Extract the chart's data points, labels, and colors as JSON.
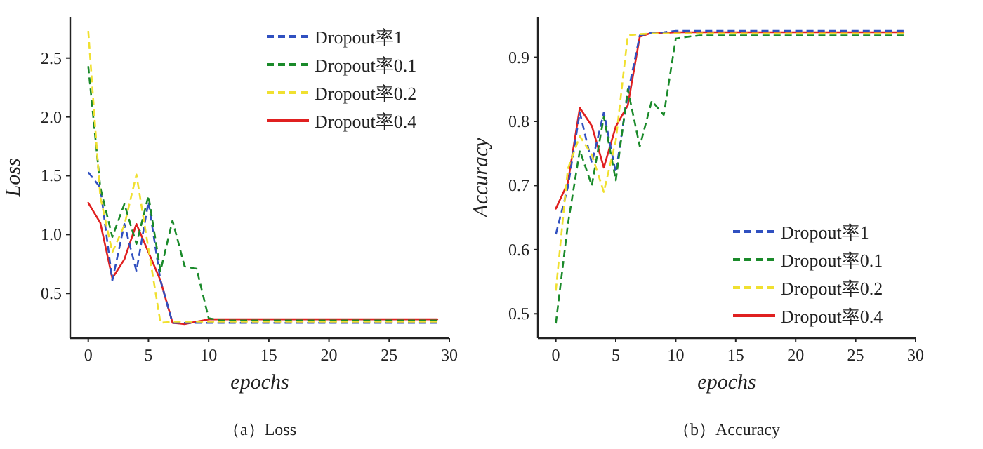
{
  "chart_data": [
    {
      "type": "line",
      "title": "（a）Loss",
      "xlabel": "epochs",
      "ylabel": "Loss",
      "x": [
        0,
        1,
        2,
        3,
        4,
        5,
        6,
        7,
        8,
        9,
        10,
        11,
        12,
        13,
        14,
        15,
        16,
        17,
        18,
        19,
        20,
        21,
        22,
        23,
        24,
        25,
        26,
        27,
        28,
        29
      ],
      "xlim": [
        -1.5,
        30
      ],
      "xticks": [
        0,
        5,
        10,
        15,
        20,
        25,
        30
      ],
      "ylim": [
        0.12,
        2.85
      ],
      "yticks": [
        0.5,
        {
          "value": 1,
          "label": "1.0"
        },
        1.5,
        {
          "value": 2,
          "label": "2.0"
        },
        2.5
      ],
      "legend": "top right",
      "grid": false,
      "series": [
        {
          "name": "Dropout率1",
          "color": "#3050c0",
          "line_style": "dashed",
          "values": [
            1.53,
            1.4,
            0.61,
            1.09,
            0.69,
            1.28,
            0.61,
            0.25,
            0.25,
            0.25,
            0.25,
            0.25,
            0.25,
            0.25,
            0.25,
            0.25,
            0.25,
            0.25,
            0.25,
            0.25,
            0.25,
            0.25,
            0.25,
            0.25,
            0.25,
            0.25,
            0.25,
            0.25,
            0.25,
            0.25
          ]
        },
        {
          "name": "Dropout率0.1",
          "color": "#1a8a2a",
          "line_style": "dashed",
          "values": [
            2.43,
            1.4,
            0.98,
            1.26,
            0.92,
            1.33,
            0.69,
            1.12,
            0.73,
            0.71,
            0.29,
            0.27,
            0.27,
            0.27,
            0.27,
            0.27,
            0.27,
            0.27,
            0.27,
            0.27,
            0.27,
            0.27,
            0.27,
            0.27,
            0.27,
            0.27,
            0.27,
            0.27,
            0.27,
            0.27
          ]
        },
        {
          "name": "Dropout率0.2",
          "color": "#f0e030",
          "line_style": "dashed",
          "values": [
            2.73,
            1.32,
            0.85,
            1.08,
            1.51,
            0.88,
            0.25,
            0.26,
            0.26,
            0.26,
            0.26,
            0.26,
            0.26,
            0.26,
            0.26,
            0.26,
            0.26,
            0.26,
            0.26,
            0.26,
            0.26,
            0.26,
            0.26,
            0.26,
            0.26,
            0.26,
            0.26,
            0.26,
            0.26,
            0.26
          ]
        },
        {
          "name": "Dropout率0.4",
          "color": "#e02020",
          "line_style": "solid",
          "values": [
            1.27,
            1.1,
            0.63,
            0.79,
            1.09,
            0.85,
            0.61,
            0.25,
            0.24,
            0.26,
            0.28,
            0.28,
            0.28,
            0.28,
            0.28,
            0.28,
            0.28,
            0.28,
            0.28,
            0.28,
            0.28,
            0.28,
            0.28,
            0.28,
            0.28,
            0.28,
            0.28,
            0.28,
            0.28,
            0.28
          ]
        }
      ]
    },
    {
      "type": "line",
      "title": "（b）Accuracy",
      "xlabel": "epochs",
      "ylabel": "Accuracy",
      "x": [
        0,
        1,
        2,
        3,
        4,
        5,
        6,
        7,
        8,
        9,
        10,
        11,
        12,
        13,
        14,
        15,
        16,
        17,
        18,
        19,
        20,
        21,
        22,
        23,
        24,
        25,
        26,
        27,
        28,
        29
      ],
      "xlim": [
        -1.5,
        30
      ],
      "xticks": [
        0,
        5,
        10,
        15,
        20,
        25,
        30
      ],
      "ylim": [
        0.462,
        0.963
      ],
      "yticks": [
        0.5,
        0.6,
        0.7,
        0.8,
        0.9
      ],
      "legend": "bottom right",
      "grid": false,
      "series": [
        {
          "name": "Dropout率1",
          "color": "#3050c0",
          "line_style": "dashed",
          "values": [
            0.624,
            0.697,
            0.814,
            0.735,
            0.814,
            0.72,
            0.843,
            0.934,
            0.938,
            0.939,
            0.941,
            0.941,
            0.941,
            0.941,
            0.941,
            0.941,
            0.941,
            0.941,
            0.941,
            0.941,
            0.941,
            0.941,
            0.941,
            0.941,
            0.941,
            0.941,
            0.941,
            0.941,
            0.941,
            0.941
          ]
        },
        {
          "name": "Dropout率0.1",
          "color": "#1a8a2a",
          "line_style": "dashed",
          "values": [
            0.485,
            0.639,
            0.755,
            0.7,
            0.807,
            0.708,
            0.85,
            0.761,
            0.832,
            0.81,
            0.929,
            0.932,
            0.934,
            0.934,
            0.934,
            0.934,
            0.934,
            0.934,
            0.934,
            0.934,
            0.934,
            0.934,
            0.934,
            0.934,
            0.934,
            0.934,
            0.934,
            0.934,
            0.934,
            0.934
          ]
        },
        {
          "name": "Dropout率0.2",
          "color": "#f0e030",
          "line_style": "dashed",
          "values": [
            0.536,
            0.726,
            0.777,
            0.748,
            0.69,
            0.77,
            0.934,
            0.936,
            0.937,
            0.937,
            0.937,
            0.937,
            0.937,
            0.937,
            0.937,
            0.937,
            0.937,
            0.937,
            0.937,
            0.937,
            0.937,
            0.937,
            0.937,
            0.937,
            0.937,
            0.937,
            0.937,
            0.937,
            0.937,
            0.937
          ]
        },
        {
          "name": "Dropout率0.4",
          "color": "#e02020",
          "line_style": "solid",
          "values": [
            0.664,
            0.704,
            0.821,
            0.793,
            0.728,
            0.792,
            0.825,
            0.932,
            0.938,
            0.938,
            0.939,
            0.939,
            0.939,
            0.939,
            0.939,
            0.939,
            0.939,
            0.939,
            0.939,
            0.939,
            0.939,
            0.939,
            0.939,
            0.939,
            0.939,
            0.939,
            0.939,
            0.939,
            0.939,
            0.939
          ]
        }
      ]
    }
  ]
}
